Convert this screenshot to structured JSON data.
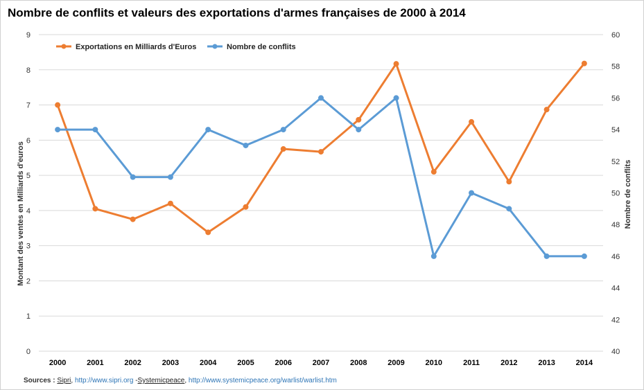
{
  "chart_data": {
    "type": "line",
    "title": "Nombre de conflits et valeurs des exportations d'armes françaises de 2000 à 2014",
    "categories": [
      "2000",
      "2001",
      "2002",
      "2003",
      "2004",
      "2005",
      "2006",
      "2007",
      "2008",
      "2009",
      "2010",
      "2011",
      "2012",
      "2013",
      "2014"
    ],
    "series": [
      {
        "name": "Exportations en Milliards d'Euros",
        "axis": "left",
        "color": "#ed7d31",
        "values": [
          7.0,
          4.05,
          3.75,
          4.2,
          3.38,
          4.1,
          5.75,
          5.67,
          6.58,
          8.17,
          5.1,
          6.52,
          4.82,
          6.87,
          8.18
        ]
      },
      {
        "name": "Nombre de conflits",
        "axis": "right",
        "color": "#5b9bd5",
        "values": [
          54,
          54,
          51,
          51,
          54,
          53,
          54,
          56,
          54,
          56,
          46,
          50,
          49,
          46,
          46
        ]
      }
    ],
    "ylabel": "Montant des ventes en Milliards d'euros",
    "y2label": "Nombre de conflits",
    "ylim": [
      0,
      9
    ],
    "yticks": [
      "0",
      "1",
      "2",
      "3",
      "4",
      "5",
      "6",
      "7",
      "8",
      "9"
    ],
    "y2lim": [
      40,
      60
    ],
    "y2ticks": [
      "40",
      "42",
      "44",
      "46",
      "48",
      "50",
      "52",
      "54",
      "56",
      "58",
      "60"
    ],
    "grid": "horizontal",
    "legend_position": "top-left",
    "gridline_color": "#d9d9d9"
  },
  "sources": {
    "label": "Sources :",
    "sipri": "Sipri",
    "sipri_url": "http://www.sipri.org",
    "sep": "-",
    "systemicpeace": "Systemicpeace",
    "systemicpeace_url": "http://www.systemicpeace.org/warlist/warlist.htm"
  }
}
